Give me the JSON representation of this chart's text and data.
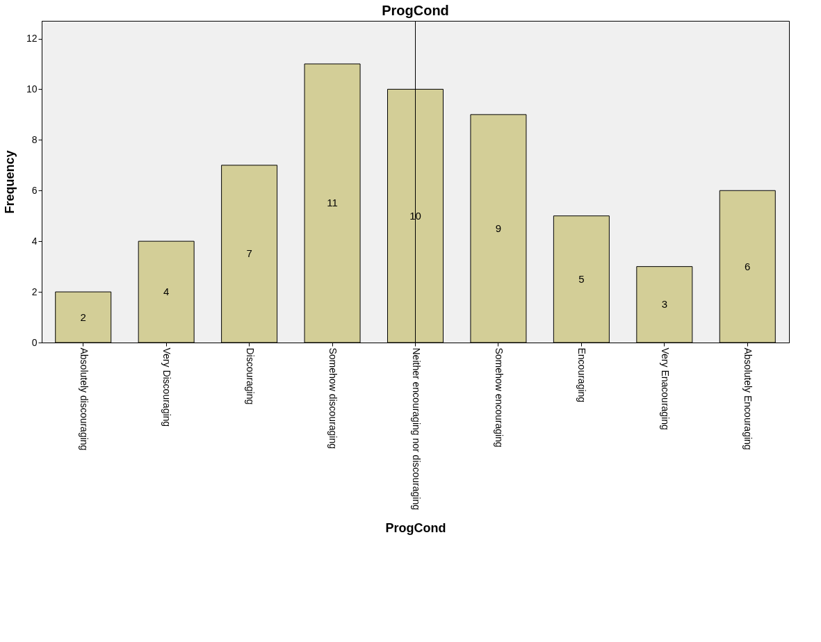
{
  "chart_data": {
    "type": "bar",
    "title": "ProgCond",
    "xlabel": "ProgCond",
    "ylabel": "Frequency",
    "categories": [
      "Absolutely discouraging",
      "Very Discouraging",
      "Discouraging",
      "Somehow discouraging",
      "Neither encouraging nor discouraging",
      "Somehow encouraging",
      "Encouraging",
      "Very Enacouraging",
      "Absolutely Encouraging"
    ],
    "values": [
      2,
      4,
      7,
      11,
      10,
      9,
      5,
      3,
      6
    ],
    "color": "#d3ce97",
    "ylim": [
      0,
      12.7
    ],
    "yticks": [
      0,
      2,
      4,
      6,
      8,
      10,
      12
    ],
    "ref_lines": [
      {
        "axis": "x",
        "value": "Neither encouraging nor discouraging",
        "color": "#000000"
      }
    ],
    "data_labels": true,
    "grid": false
  }
}
